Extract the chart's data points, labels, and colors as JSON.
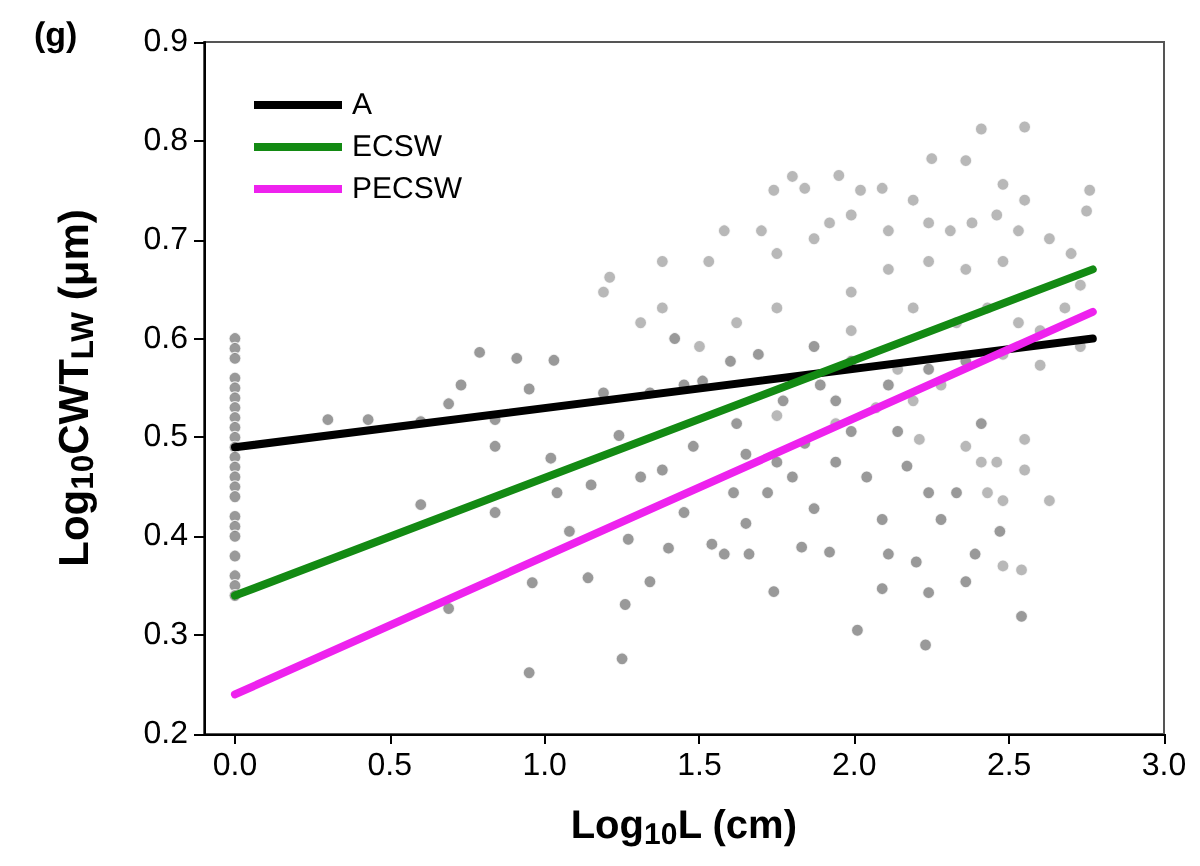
{
  "chart_data": {
    "type": "scatter",
    "title": "(g)",
    "xlabel": "Log$_{10}$L (cm)",
    "ylabel": "Log$_{10}$CWT$_{LW}$ (μm)",
    "xlim": [
      -0.1,
      3.0
    ],
    "xticks": [
      {
        "value": 0,
        "label": "0.0"
      },
      0.5,
      {
        "value": 1,
        "label": "1.0"
      },
      1.5,
      {
        "value": 2,
        "label": "2.0"
      },
      2.5,
      {
        "value": 3,
        "label": "3.0"
      }
    ],
    "ylim": [
      0.2,
      0.9
    ],
    "yticks": [
      0.2,
      0.3,
      0.4,
      0.5,
      0.6,
      0.7,
      0.8,
      0.9
    ],
    "grid": false,
    "legend": "top left",
    "series": [
      {
        "marker": "circle",
        "color": "#808080",
        "x": [
          0,
          0,
          0,
          0,
          0,
          0,
          0,
          0,
          0,
          0,
          0,
          0,
          0,
          0,
          0,
          0,
          0,
          0,
          0,
          0,
          0,
          0,
          0,
          0.3,
          0.43,
          0.6,
          0.6,
          0.69,
          0.69,
          0.73,
          0.79,
          0.84,
          0.84,
          0.84,
          0.91,
          0.95,
          0.95,
          0.96,
          1.03,
          1.02,
          1.04,
          1.08,
          1.14,
          1.15,
          1.19,
          1.24,
          1.26,
          1.25,
          1.27,
          1.31,
          1.34,
          1.34,
          1.38,
          1.4,
          1.42,
          1.45,
          1.48,
          1.51,
          1.54,
          1.58,
          1.61,
          1.62,
          1.65,
          1.66,
          1.69,
          1.72,
          1.74,
          1.77,
          1.8,
          1.83,
          1.84,
          1.87,
          1.89,
          1.92,
          1.94,
          1.99,
          2.01,
          2.04,
          2.09,
          2.09,
          2.11,
          2.14,
          2.17,
          2.2,
          2.23,
          2.24,
          2.24,
          2.28,
          2.33,
          2.36,
          2.39,
          2.41,
          2.47,
          2.54,
          1.94,
          1.75,
          1.65,
          1.87,
          1.99,
          2.11,
          2.24,
          2.36,
          1.45,
          1.6
        ],
        "values": [
          0.6,
          0.59,
          0.58,
          0.56,
          0.55,
          0.54,
          0.53,
          0.52,
          0.51,
          0.5,
          0.49,
          0.48,
          0.47,
          0.46,
          0.45,
          0.44,
          0.42,
          0.41,
          0.4,
          0.38,
          0.36,
          0.35,
          0.34,
          0.518,
          0.518,
          0.516,
          0.432,
          0.534,
          0.327,
          0.553,
          0.586,
          0.518,
          0.491,
          0.424,
          0.58,
          0.549,
          0.262,
          0.353,
          0.578,
          0.479,
          0.444,
          0.405,
          0.358,
          0.452,
          0.545,
          0.502,
          0.331,
          0.276,
          0.397,
          0.46,
          0.545,
          0.354,
          0.467,
          0.388,
          0.6,
          0.424,
          0.491,
          0.557,
          0.392,
          0.382,
          0.444,
          0.514,
          0.413,
          0.382,
          0.584,
          0.444,
          0.344,
          0.537,
          0.46,
          0.389,
          0.494,
          0.428,
          0.553,
          0.384,
          0.475,
          0.506,
          0.305,
          0.46,
          0.347,
          0.417,
          0.382,
          0.506,
          0.471,
          0.374,
          0.29,
          0.343,
          0.444,
          0.417,
          0.444,
          0.354,
          0.382,
          0.514,
          0.405,
          0.319,
          0.537,
          0.475,
          0.483,
          0.592,
          0.577,
          0.553,
          0.569,
          0.577,
          0.553,
          0.577
        ]
      },
      {
        "marker": "circle",
        "color": "#a6a6a6",
        "x": [
          2.41,
          2.55,
          2.25,
          2.36,
          2.76,
          1.95,
          1.8,
          1.74,
          1.84,
          2.02,
          2.09,
          2.19,
          2.48,
          2.55,
          2.75,
          1.38,
          1.31,
          1.19,
          1.21,
          1.38,
          1.58,
          1.53,
          1.7,
          1.75,
          1.87,
          1.92,
          1.99,
          2.11,
          2.24,
          2.31,
          2.38,
          2.46,
          2.53,
          2.63,
          2.7,
          2.73,
          2.68,
          2.11,
          2.24,
          2.36,
          2.48,
          1.99,
          1.75,
          1.62,
          1.5,
          1.99,
          2.19,
          2.33,
          2.43,
          2.53,
          2.6,
          2.48,
          2.14,
          2.28,
          2.19,
          2.07,
          1.94,
          1.75,
          2.21,
          2.36,
          2.55,
          2.46,
          2.43,
          2.48,
          2.55,
          2.63,
          2.48,
          2.54,
          2.6,
          2.73,
          2.41
        ],
        "values": [
          0.812,
          0.814,
          0.782,
          0.78,
          0.75,
          0.765,
          0.764,
          0.75,
          0.752,
          0.75,
          0.752,
          0.74,
          0.756,
          0.74,
          0.729,
          0.631,
          0.616,
          0.647,
          0.662,
          0.678,
          0.709,
          0.678,
          0.709,
          0.686,
          0.701,
          0.717,
          0.725,
          0.709,
          0.717,
          0.709,
          0.717,
          0.725,
          0.709,
          0.701,
          0.686,
          0.654,
          0.631,
          0.67,
          0.678,
          0.67,
          0.678,
          0.647,
          0.631,
          0.616,
          0.592,
          0.608,
          0.631,
          0.616,
          0.631,
          0.616,
          0.608,
          0.584,
          0.569,
          0.553,
          0.537,
          0.53,
          0.514,
          0.522,
          0.498,
          0.491,
          0.498,
          0.475,
          0.444,
          0.436,
          0.467,
          0.436,
          0.37,
          0.366,
          0.573,
          0.592,
          0.475
        ]
      },
      {
        "type": "line",
        "marker": "none",
        "name": "A",
        "color": "#000000",
        "x": [
          0,
          2.77
        ],
        "values": [
          0.49,
          0.6
        ]
      },
      {
        "type": "line",
        "marker": "none",
        "name": "ECSW",
        "color": "#138a13",
        "x": [
          0,
          2.77
        ],
        "values": [
          0.34,
          0.67
        ]
      },
      {
        "type": "line",
        "marker": "none",
        "name": "PECSW",
        "color": "#ee22ee",
        "x": [
          0,
          2.77
        ],
        "values": [
          0.24,
          0.627
        ]
      }
    ]
  }
}
